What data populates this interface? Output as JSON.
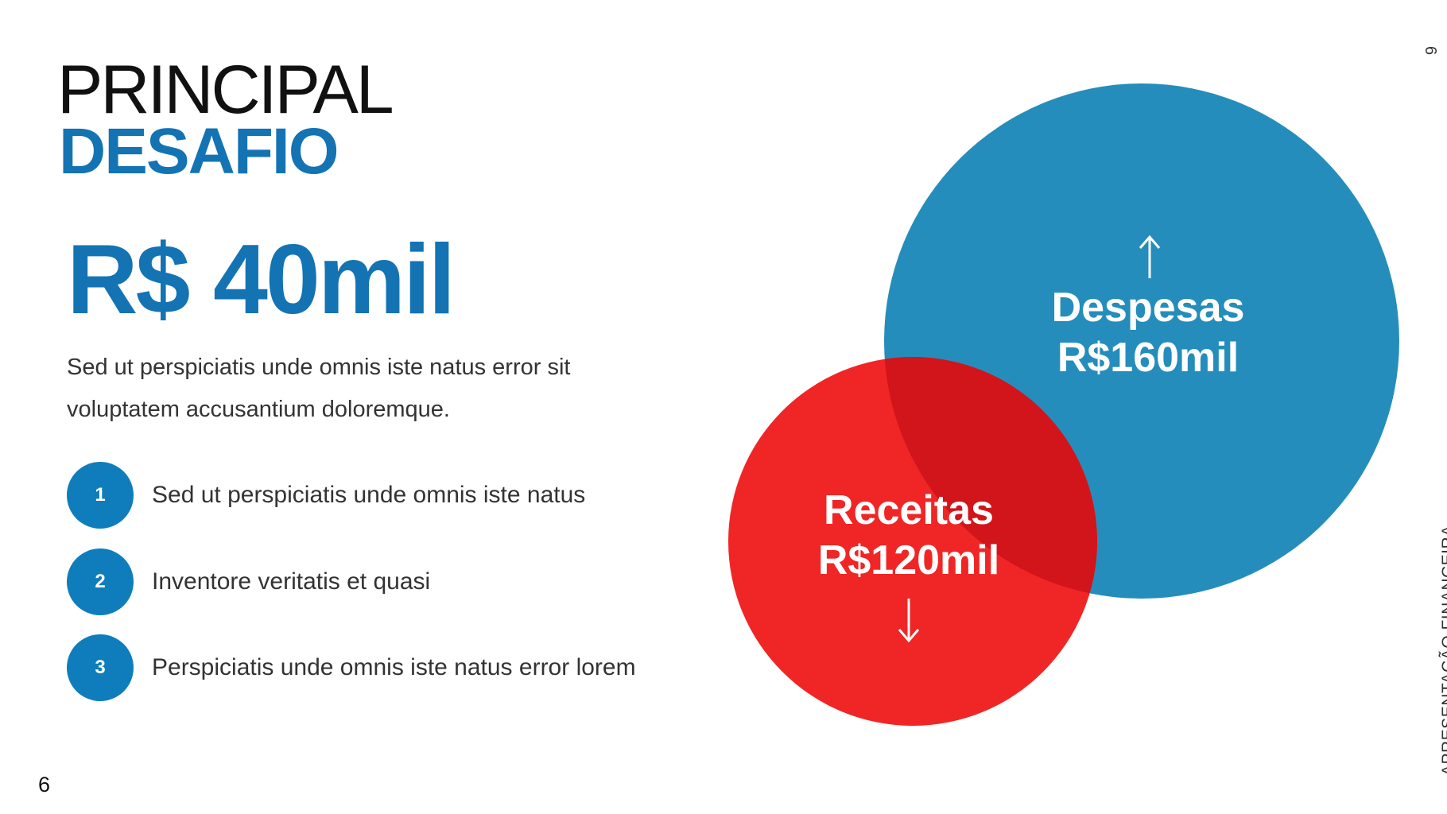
{
  "title": {
    "line1": "PRINCIPAL",
    "line2": "DESAFIO"
  },
  "headline_value": "R$ 40mil",
  "description": "Sed ut perspiciatis unde omnis iste natus error sit voluptatem accusantium doloremque.",
  "bullets": [
    {
      "number": "1",
      "text": "Sed ut perspiciatis unde omnis iste natus"
    },
    {
      "number": "2",
      "text": "Inventore veritatis et quasi"
    },
    {
      "number": "3",
      "text": "Perspiciatis unde omnis iste natus error lorem"
    }
  ],
  "circles": {
    "despesas": {
      "label": "Despesas",
      "value": "R$160mil",
      "icon": "arrow-up-icon",
      "color": "#258dbb"
    },
    "receitas": {
      "label": "Receitas",
      "value": "R$120mil",
      "icon": "arrow-down-icon",
      "color": "#f02626"
    },
    "overlap_color": "#d2141b"
  },
  "footer": {
    "page_number": "6",
    "side_label": "APRESENTAÇÃO FINANCEIRA",
    "side_page_number": "6"
  },
  "colors": {
    "accent": "#1373b3"
  }
}
